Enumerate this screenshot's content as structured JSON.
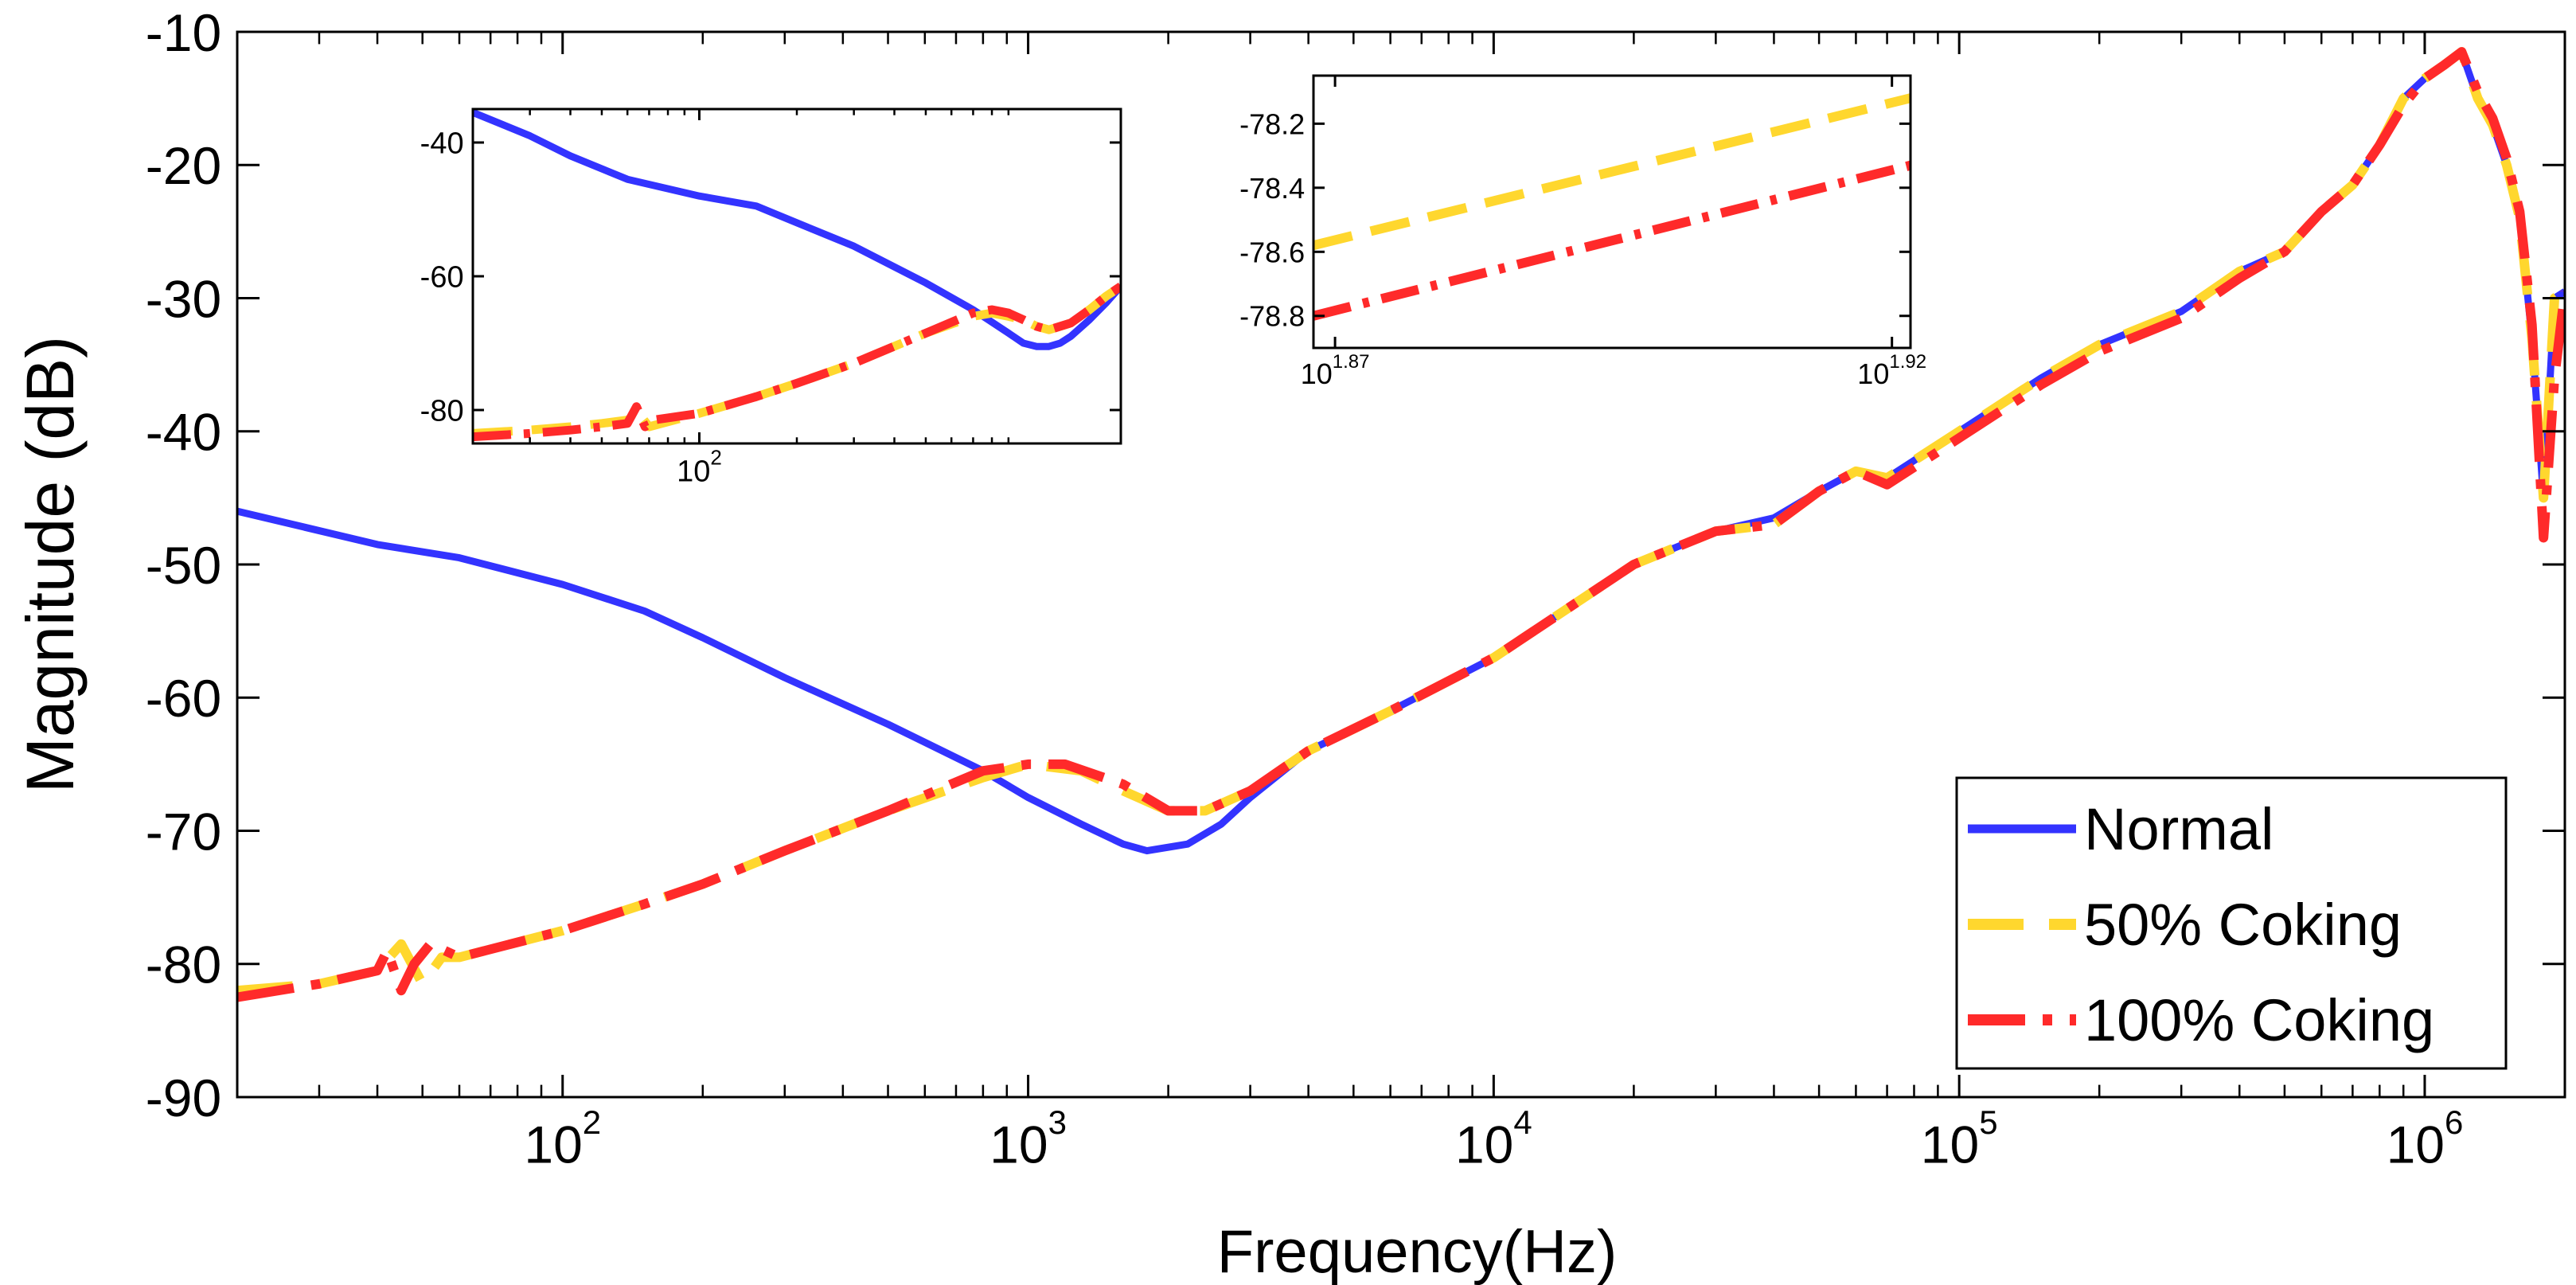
{
  "chart_data": [
    {
      "type": "line",
      "title": "",
      "xlabel": "Frequency(Hz)",
      "ylabel": "Magnitude (dB)",
      "xscale": "log",
      "xlim": [
        20,
        2000000
      ],
      "ylim": [
        -90,
        -10
      ],
      "x_ticks": [
        100,
        1000,
        10000,
        100000,
        1000000
      ],
      "x_tick_labels": [
        {
          "base": "10",
          "exp": "2"
        },
        {
          "base": "10",
          "exp": "3"
        },
        {
          "base": "10",
          "exp": "4"
        },
        {
          "base": "10",
          "exp": "5"
        },
        {
          "base": "10",
          "exp": "6"
        }
      ],
      "y_ticks": [
        -90,
        -80,
        -70,
        -60,
        -50,
        -40,
        -30,
        -20,
        -10
      ],
      "y_tick_labels": [
        "-90",
        "-80",
        "-70",
        "-60",
        "-50",
        "-40",
        "-30",
        "-20",
        "-10"
      ],
      "grid": false,
      "legend": "bottom-right",
      "series": [
        {
          "name": "Normal",
          "color": "#3333ff",
          "style": "solid",
          "x": [
            20,
            40,
            60,
            100,
            150,
            200,
            300,
            500,
            800,
            1000,
            1300,
            1600,
            1800,
            2200,
            2600,
            3000,
            4000,
            6000,
            10000,
            20000,
            30000,
            40000,
            50000,
            60000,
            70000,
            100000,
            150000,
            200000,
            300000,
            400000,
            500000,
            600000,
            700000,
            800000,
            900000,
            1000000,
            1100000,
            1200000,
            1300000,
            1400000,
            1500000,
            1600000,
            1700000,
            1800000,
            1900000,
            2000000
          ],
          "y": [
            -46,
            -48.5,
            -49.5,
            -51.5,
            -53.5,
            -55.5,
            -58.5,
            -62,
            -65.5,
            -67.5,
            -69.5,
            -71,
            -71.5,
            -71,
            -69.5,
            -67.5,
            -64,
            -61,
            -57,
            -50,
            -47.5,
            -46.5,
            -44.5,
            -43,
            -43.5,
            -40,
            -36,
            -33.5,
            -31,
            -28,
            -26.5,
            -23.5,
            -21.5,
            -18.5,
            -15,
            -13.5,
            -12.5,
            -11.5,
            -15,
            -17,
            -20,
            -24,
            -33,
            -45,
            -30,
            -29.5
          ]
        },
        {
          "name": "50% Coking",
          "color": "#ffd72e",
          "style": "dashed",
          "x": [
            20,
            30,
            40,
            45,
            50,
            55,
            60,
            100,
            150,
            200,
            300,
            500,
            800,
            1000,
            1300,
            1600,
            2000,
            2400,
            3000,
            4000,
            6000,
            10000,
            20000,
            30000,
            40000,
            50000,
            60000,
            70000,
            100000,
            150000,
            200000,
            300000,
            400000,
            500000,
            600000,
            700000,
            800000,
            900000,
            1000000,
            1100000,
            1200000,
            1300000,
            1400000,
            1500000,
            1600000,
            1700000,
            1800000,
            1900000,
            2000000
          ],
          "y": [
            -82,
            -81.5,
            -80.5,
            -78.5,
            -81.5,
            -79.5,
            -79.5,
            -77.5,
            -75.5,
            -74,
            -71.5,
            -68.5,
            -66,
            -65,
            -65.5,
            -67,
            -68.5,
            -68.5,
            -67,
            -64,
            -61,
            -57,
            -50,
            -47.5,
            -47,
            -44.5,
            -43,
            -43.5,
            -40,
            -36,
            -33.5,
            -31,
            -28,
            -26.5,
            -23.5,
            -21.5,
            -18.5,
            -15,
            -13.5,
            -12.5,
            -11.5,
            -15,
            -17,
            -20,
            -24,
            -33,
            -45,
            -30,
            -29.5
          ]
        },
        {
          "name": "100% Coking",
          "color": "#ff2a2a",
          "style": "dashdot",
          "x": [
            20,
            30,
            40,
            42,
            45,
            48,
            52,
            60,
            100,
            150,
            200,
            300,
            500,
            800,
            1000,
            1200,
            1600,
            2000,
            2400,
            3000,
            4000,
            6000,
            10000,
            20000,
            30000,
            40000,
            50000,
            60000,
            70000,
            100000,
            150000,
            200000,
            300000,
            400000,
            500000,
            600000,
            700000,
            800000,
            900000,
            1000000,
            1100000,
            1200000,
            1300000,
            1400000,
            1500000,
            1600000,
            1700000,
            1800000,
            1900000,
            2000000
          ],
          "y": [
            -82.5,
            -81.5,
            -80.5,
            -79,
            -82,
            -80,
            -78.5,
            -79.5,
            -77.5,
            -75.5,
            -74,
            -71.5,
            -68.5,
            -65.5,
            -65,
            -65,
            -66.5,
            -68.5,
            -68.5,
            -67,
            -64,
            -61,
            -57,
            -50,
            -47.5,
            -47,
            -44.5,
            -43,
            -44,
            -40.5,
            -36.5,
            -34,
            -31.5,
            -28.5,
            -26.5,
            -23.5,
            -21.5,
            -18.5,
            -15.5,
            -13.5,
            -12.5,
            -11.5,
            -14.5,
            -16.5,
            -19.5,
            -23.5,
            -32,
            -48,
            -36,
            -29.5
          ]
        }
      ]
    },
    {
      "type": "line",
      "title": "",
      "xlabel": "",
      "ylabel": "",
      "xscale": "log",
      "xlim": [
        20,
        2000
      ],
      "ylim": [
        -85,
        -35
      ],
      "x_ticks": [
        100
      ],
      "x_tick_labels": [
        {
          "base": "10",
          "exp": "2"
        }
      ],
      "y_ticks": [
        -80,
        -60,
        -40
      ],
      "y_tick_labels": [
        "-80",
        "-60",
        "-40"
      ],
      "grid": false,
      "series": [
        {
          "color": "#3333ff",
          "style": "solid",
          "x": [
            20,
            30,
            40,
            60,
            100,
            150,
            200,
            300,
            500,
            700,
            900,
            1000,
            1100,
            1200,
            1300,
            1400,
            1600,
            1800,
            2000
          ],
          "y": [
            -35.5,
            -39,
            -42,
            -45.5,
            -48,
            -49.5,
            -52,
            -55.5,
            -61,
            -65,
            -68.5,
            -70,
            -70.5,
            -70.5,
            -70,
            -69,
            -66.5,
            -64,
            -61.5
          ]
        },
        {
          "color": "#ffd72e",
          "style": "dashed",
          "x": [
            20,
            30,
            40,
            50,
            60,
            65,
            70,
            100,
            150,
            200,
            300,
            500,
            700,
            800,
            900,
            1000,
            1100,
            1200,
            1400,
            1600,
            1800,
            2000
          ],
          "y": [
            -83.5,
            -83,
            -82.5,
            -82,
            -81.5,
            -80.5,
            -82.5,
            -80.5,
            -78,
            -76,
            -73,
            -68.5,
            -66,
            -65.5,
            -66,
            -66.5,
            -67.5,
            -68,
            -67,
            -65,
            -63,
            -61.5
          ]
        },
        {
          "color": "#ff2a2a",
          "style": "dashdot",
          "x": [
            20,
            30,
            40,
            50,
            60,
            64,
            68,
            72,
            100,
            150,
            200,
            300,
            500,
            700,
            800,
            900,
            1000,
            1100,
            1200,
            1400,
            1600,
            1800,
            2000
          ],
          "y": [
            -84,
            -83.5,
            -83,
            -82.5,
            -82,
            -79.5,
            -82.5,
            -81.5,
            -80.5,
            -78,
            -76,
            -73,
            -68.5,
            -65.5,
            -65,
            -65.5,
            -66.5,
            -67.5,
            -68,
            -67,
            -65,
            -63,
            -61.5
          ]
        }
      ]
    },
    {
      "type": "line",
      "title": "",
      "xlabel": "",
      "ylabel": "",
      "xscale": "log",
      "xlim": [
        73.8,
        83.5
      ],
      "ylim": [
        -78.9,
        -78.05
      ],
      "x_ticks": [
        74.13,
        83.18
      ],
      "x_tick_labels": [
        {
          "base": "10",
          "exp": "1.87"
        },
        {
          "base": "10",
          "exp": "1.92"
        }
      ],
      "y_ticks": [
        -78.8,
        -78.6,
        -78.4,
        -78.2
      ],
      "y_tick_labels": [
        "-78.8",
        "-78.6",
        "-78.4",
        "-78.2"
      ],
      "grid": false,
      "series": [
        {
          "color": "#ffd72e",
          "style": "dashed",
          "x": [
            73.8,
            83.5
          ],
          "y": [
            -78.58,
            -78.12
          ]
        },
        {
          "color": "#ff2a2a",
          "style": "dashdot",
          "x": [
            73.8,
            83.5
          ],
          "y": [
            -78.8,
            -78.33
          ]
        }
      ]
    }
  ]
}
